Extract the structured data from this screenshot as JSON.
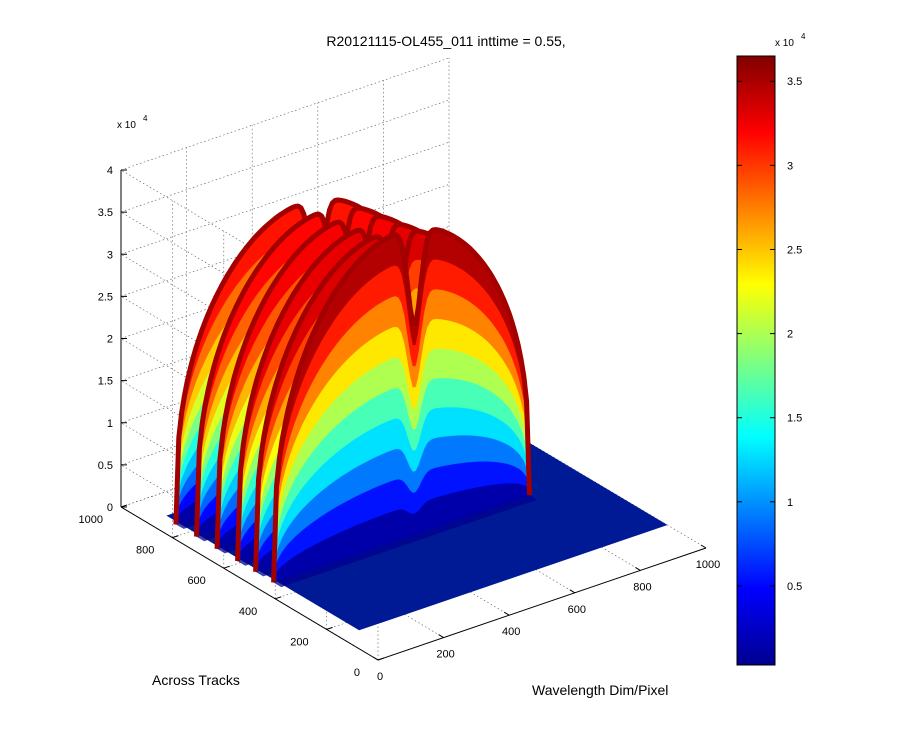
{
  "chart_data": {
    "type": "surface",
    "title": "R20121115-OL455_011 inttime = 0.55,",
    "xlabel": "Wavelength Dim/Pixel",
    "ylabel": "Across Tracks",
    "zlabel": "",
    "xlim": [
      0,
      1000
    ],
    "ylim": [
      0,
      1000
    ],
    "zlim": [
      0,
      40000
    ],
    "x_ticks": [
      "0",
      "200",
      "400",
      "600",
      "800",
      "1000"
    ],
    "y_ticks": [
      "0",
      "200",
      "400",
      "600",
      "800",
      "1000"
    ],
    "z_ticks": [
      "0",
      "0.5",
      "1",
      "1.5",
      "2",
      "2.5",
      "3",
      "3.5",
      "4"
    ],
    "z_exponent": "x 10",
    "z_exponent_power": "4",
    "colormap": "jet",
    "grid": true,
    "colorbar": {
      "ticks": [
        "0.5",
        "1",
        "1.5",
        "2",
        "2.5",
        "3",
        "3.5"
      ],
      "tick_values": [
        5000,
        10000,
        15000,
        20000,
        25000,
        30000,
        35000
      ],
      "range": [
        300,
        36500
      ],
      "exponent": "x 10",
      "exponent_power": "4"
    },
    "bands": [
      {
        "across_track": 850,
        "spectral_start": 50,
        "spectral_end": 830,
        "peak": 33000
      },
      {
        "across_track": 770,
        "spectral_start": 50,
        "spectral_end": 830,
        "peak": 33500
      },
      {
        "across_track": 690,
        "spectral_start": 50,
        "spectral_end": 830,
        "peak": 34000
      },
      {
        "across_track": 610,
        "spectral_start": 50,
        "spectral_end": 830,
        "peak": 34500
      },
      {
        "across_track": 540,
        "spectral_start": 50,
        "spectral_end": 830,
        "peak": 35000
      },
      {
        "across_track": 470,
        "spectral_start": 50,
        "spectral_end": 830,
        "peak": 36500
      }
    ]
  }
}
